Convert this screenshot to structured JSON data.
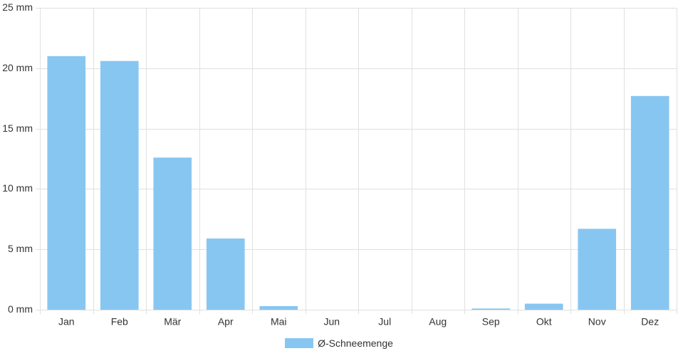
{
  "chart_data": {
    "type": "bar",
    "categories": [
      "Jan",
      "Feb",
      "Mär",
      "Apr",
      "Mai",
      "Jun",
      "Jul",
      "Aug",
      "Sep",
      "Okt",
      "Nov",
      "Dez"
    ],
    "series": [
      {
        "name": "Ø-Schneemenge",
        "values": [
          21.0,
          20.6,
          12.6,
          5.9,
          0.3,
          0.0,
          0.0,
          0.0,
          0.1,
          0.5,
          6.7,
          17.7
        ]
      }
    ],
    "ylim": [
      0,
      25
    ],
    "yticks": [
      0,
      5,
      10,
      15,
      20,
      25
    ],
    "ytick_unit": "mm",
    "grid": true,
    "legend": "bottom-center",
    "colors": {
      "bar": "#88c6f2",
      "grid": "#e0e0e0",
      "axis": "#cccccc",
      "text": "#333333"
    }
  }
}
